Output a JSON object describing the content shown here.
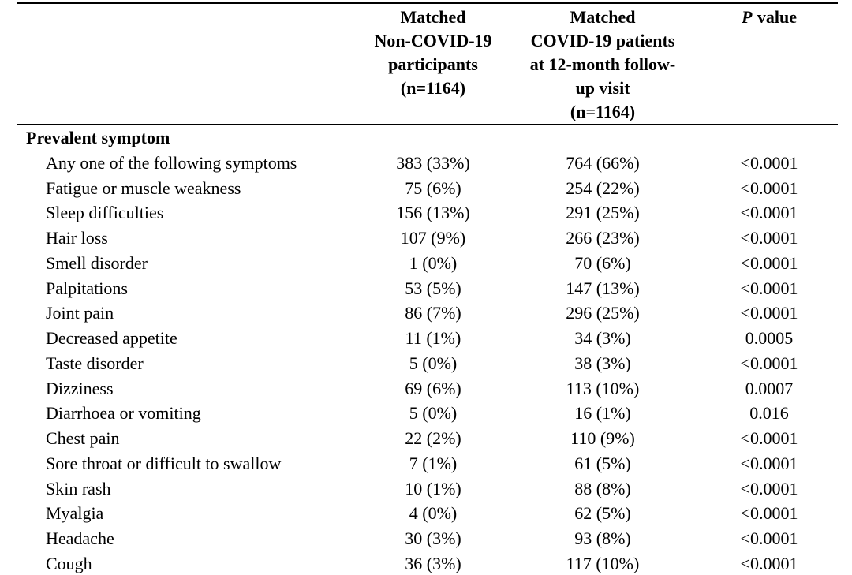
{
  "page": {
    "background_color": "#ffffff",
    "text_color": "#000000"
  },
  "table": {
    "header": {
      "col2_lines": [
        "Matched",
        "Non-COVID-19",
        "participants",
        "(n=1164)"
      ],
      "col3_lines": [
        "Matched",
        "COVID-19 patients",
        "at 12-month follow-",
        "up visit",
        "(n=1164)"
      ],
      "col4_p": "P",
      "col4_value": "value"
    },
    "section_header": "Prevalent symptom",
    "rows": [
      {
        "symptom": "Any one of the following symptoms",
        "non_covid": "383 (33%)",
        "covid": "764 (66%)",
        "p_value": "<0.0001"
      },
      {
        "symptom": "Fatigue or muscle weakness",
        "non_covid": "75 (6%)",
        "covid": "254 (22%)",
        "p_value": "<0.0001"
      },
      {
        "symptom": "Sleep difficulties",
        "non_covid": "156 (13%)",
        "covid": "291 (25%)",
        "p_value": "<0.0001"
      },
      {
        "symptom": "Hair loss",
        "non_covid": "107 (9%)",
        "covid": "266 (23%)",
        "p_value": "<0.0001"
      },
      {
        "symptom": "Smell disorder",
        "non_covid": "1 (0%)",
        "covid": "70 (6%)",
        "p_value": "<0.0001"
      },
      {
        "symptom": "Palpitations",
        "non_covid": "53 (5%)",
        "covid": "147 (13%)",
        "p_value": "<0.0001"
      },
      {
        "symptom": "Joint pain",
        "non_covid": "86 (7%)",
        "covid": "296 (25%)",
        "p_value": "<0.0001"
      },
      {
        "symptom": "Decreased appetite",
        "non_covid": "11 (1%)",
        "covid": "34 (3%)",
        "p_value": "0.0005"
      },
      {
        "symptom": "Taste disorder",
        "non_covid": "5 (0%)",
        "covid": "38 (3%)",
        "p_value": "<0.0001"
      },
      {
        "symptom": "Dizziness",
        "non_covid": "69 (6%)",
        "covid": "113 (10%)",
        "p_value": "0.0007"
      },
      {
        "symptom": "Diarrhoea or vomiting",
        "non_covid": "5 (0%)",
        "covid": "16 (1%)",
        "p_value": "0.016"
      },
      {
        "symptom": "Chest pain",
        "non_covid": "22 (2%)",
        "covid": "110 (9%)",
        "p_value": "<0.0001"
      },
      {
        "symptom": "Sore throat or difficult to swallow",
        "non_covid": "7 (1%)",
        "covid": "61 (5%)",
        "p_value": "<0.0001"
      },
      {
        "symptom": "Skin rash",
        "non_covid": "10 (1%)",
        "covid": "88 (8%)",
        "p_value": "<0.0001"
      },
      {
        "symptom": "Myalgia",
        "non_covid": "4 (0%)",
        "covid": "62 (5%)",
        "p_value": "<0.0001"
      },
      {
        "symptom": "Headache",
        "non_covid": "30 (3%)",
        "covid": "93 (8%)",
        "p_value": "<0.0001"
      },
      {
        "symptom": "Cough",
        "non_covid": "36 (3%)",
        "covid": "117 (10%)",
        "p_value": "<0.0001"
      }
    ]
  }
}
